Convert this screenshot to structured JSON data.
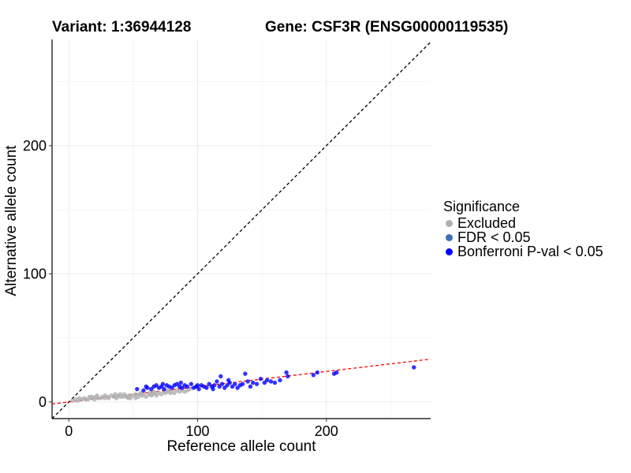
{
  "header": {
    "variant": "Variant: 1:36944128",
    "gene": "Gene: CSF3R (ENSG00000119535)"
  },
  "legend": {
    "title": "Significance",
    "items": [
      {
        "label": "Excluded",
        "color": "#b0b0b0"
      },
      {
        "label": "FDR < 0.05",
        "color": "#3d6db5"
      },
      {
        "label": "Bonferroni P-val < 0.05",
        "color": "#0000ff"
      }
    ]
  },
  "chart_data": {
    "type": "scatter",
    "title": "",
    "xlabel": "Reference allele count",
    "ylabel": "Alternative allele count",
    "xlim": [
      -13,
      281
    ],
    "ylim": [
      -13,
      283
    ],
    "xticks": [
      0,
      100,
      200
    ],
    "yticks": [
      0,
      100,
      200
    ],
    "grid": true,
    "legend_position": "right",
    "reference_lines": [
      {
        "name": "identity",
        "slope": 1,
        "intercept": 0,
        "color": "#000000",
        "dash": true
      },
      {
        "name": "fit",
        "slope": 0.119,
        "intercept": 0,
        "color": "#ff0000",
        "dash": true
      }
    ],
    "series": [
      {
        "name": "Excluded",
        "color": "#b0b0b0",
        "points": [
          [
            3,
            1
          ],
          [
            5,
            2
          ],
          [
            7,
            1
          ],
          [
            8,
            3
          ],
          [
            10,
            2
          ],
          [
            12,
            3
          ],
          [
            13,
            2
          ],
          [
            15,
            2
          ],
          [
            16,
            4
          ],
          [
            18,
            3
          ],
          [
            20,
            2
          ],
          [
            21,
            4
          ],
          [
            23,
            3
          ],
          [
            25,
            3
          ],
          [
            26,
            4
          ],
          [
            28,
            3
          ],
          [
            30,
            4
          ],
          [
            31,
            3
          ],
          [
            33,
            5
          ],
          [
            35,
            4
          ],
          [
            37,
            3
          ],
          [
            38,
            5
          ],
          [
            40,
            4
          ],
          [
            42,
            4
          ],
          [
            43,
            6
          ],
          [
            45,
            4
          ],
          [
            47,
            5
          ],
          [
            48,
            3
          ],
          [
            50,
            5
          ],
          [
            52,
            6
          ],
          [
            54,
            4
          ],
          [
            55,
            6
          ],
          [
            57,
            5
          ],
          [
            58,
            6
          ],
          [
            60,
            4
          ],
          [
            62,
            6
          ],
          [
            63,
            7
          ],
          [
            65,
            6
          ],
          [
            67,
            7
          ],
          [
            68,
            5
          ],
          [
            70,
            7
          ],
          [
            72,
            6
          ],
          [
            74,
            8
          ],
          [
            75,
            7
          ],
          [
            77,
            8
          ],
          [
            79,
            7
          ],
          [
            80,
            8
          ],
          [
            82,
            7
          ],
          [
            84,
            9
          ],
          [
            86,
            8
          ],
          [
            88,
            9
          ],
          [
            90,
            8
          ],
          [
            92,
            9
          ],
          [
            94,
            10
          ],
          [
            22,
            5
          ],
          [
            36,
            6
          ],
          [
            46,
            3
          ],
          [
            56,
            7
          ],
          [
            66,
            8
          ],
          [
            76,
            9
          ],
          [
            18,
            4
          ],
          [
            28,
            5
          ],
          [
            40,
            6
          ],
          [
            52,
            3
          ],
          [
            44,
            5
          ],
          [
            64,
            5
          ]
        ]
      },
      {
        "name": "FDR < 0.05",
        "color": "#3d6db5",
        "points": []
      },
      {
        "name": "Bonferroni P-val < 0.05",
        "color": "#0000ff",
        "points": [
          [
            53,
            10
          ],
          [
            58,
            9
          ],
          [
            61,
            11
          ],
          [
            64,
            10
          ],
          [
            66,
            12
          ],
          [
            68,
            13
          ],
          [
            70,
            11
          ],
          [
            72,
            12
          ],
          [
            74,
            10
          ],
          [
            76,
            13
          ],
          [
            78,
            12
          ],
          [
            80,
            11
          ],
          [
            82,
            13
          ],
          [
            84,
            14
          ],
          [
            86,
            12
          ],
          [
            88,
            11
          ],
          [
            90,
            13
          ],
          [
            92,
            12
          ],
          [
            95,
            14
          ],
          [
            97,
            11
          ],
          [
            99,
            12
          ],
          [
            101,
            10
          ],
          [
            103,
            13
          ],
          [
            105,
            12
          ],
          [
            107,
            11
          ],
          [
            109,
            14
          ],
          [
            111,
            12
          ],
          [
            113,
            13
          ],
          [
            115,
            16
          ],
          [
            117,
            12
          ],
          [
            119,
            14
          ],
          [
            121,
            11
          ],
          [
            123,
            13
          ],
          [
            125,
            15
          ],
          [
            127,
            12
          ],
          [
            129,
            14
          ],
          [
            131,
            11
          ],
          [
            133,
            13
          ],
          [
            135,
            14
          ],
          [
            137,
            22
          ],
          [
            139,
            16
          ],
          [
            141,
            12
          ],
          [
            143,
            15
          ],
          [
            146,
            14
          ],
          [
            149,
            18
          ],
          [
            152,
            15
          ],
          [
            154,
            17
          ],
          [
            157,
            16
          ],
          [
            160,
            15
          ],
          [
            164,
            17
          ],
          [
            169,
            23
          ],
          [
            170,
            20
          ],
          [
            190,
            21
          ],
          [
            193,
            23
          ],
          [
            206,
            22
          ],
          [
            208,
            23
          ],
          [
            268,
            27
          ],
          [
            100,
            13
          ],
          [
            112,
            10
          ],
          [
            118,
            20
          ],
          [
            124,
            17
          ],
          [
            60,
            12
          ],
          [
            73,
            14
          ],
          [
            87,
            15
          ]
        ]
      }
    ]
  }
}
